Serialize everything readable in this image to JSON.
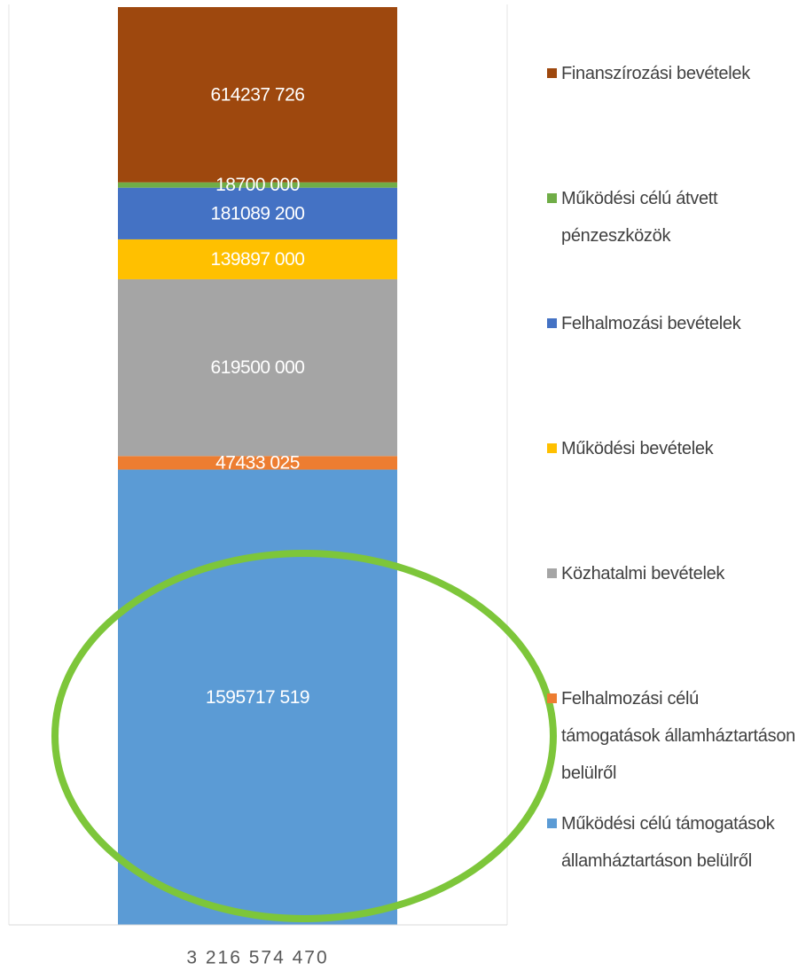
{
  "chart_data": {
    "type": "stacked_bar",
    "categories": [
      "3 216 574 470"
    ],
    "series": [
      {
        "name": "Működési célú támogatások államháztartáson belülről",
        "color": "#5b9bd5",
        "values": [
          1595717519
        ],
        "value_labels": [
          "1595717 519"
        ]
      },
      {
        "name": "Felhalmozási célú támogatások államháztartáson belülről",
        "color": "#ed7d31",
        "values": [
          47433025
        ],
        "value_labels": [
          "47433 025"
        ]
      },
      {
        "name": "Közhatalmi bevételek",
        "color": "#a5a5a5",
        "values": [
          619500000
        ],
        "value_labels": [
          "619500 000"
        ]
      },
      {
        "name": "Működési bevételek",
        "color": "#ffc000",
        "values": [
          139897000
        ],
        "value_labels": [
          "139897 000"
        ]
      },
      {
        "name": "Felhalmozási bevételek",
        "color": "#4472c4",
        "values": [
          181089200
        ],
        "value_labels": [
          "181089 200"
        ]
      },
      {
        "name": "Működési célú átvett pénzeszközök",
        "color": "#70ad47",
        "values": [
          18700000
        ],
        "value_labels": [
          "18700 000"
        ]
      },
      {
        "name": "Finanszírozási bevételek",
        "color": "#9e480e",
        "values": [
          614237726
        ],
        "value_labels": [
          "614237 726"
        ]
      }
    ],
    "legend": "right"
  }
}
